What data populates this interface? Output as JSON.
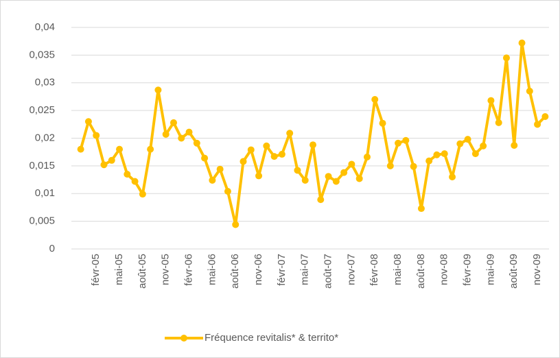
{
  "chart_data": {
    "type": "line",
    "categories": [
      null,
      null,
      "févr-05",
      null,
      null,
      "mai-05",
      null,
      null,
      "août-05",
      null,
      null,
      "nov-05",
      null,
      null,
      "févr-06",
      null,
      null,
      "mai-06",
      null,
      null,
      "août-06",
      null,
      null,
      "nov-06",
      null,
      null,
      "févr-07",
      null,
      null,
      "mai-07",
      null,
      null,
      "août-07",
      null,
      null,
      "nov-07",
      null,
      null,
      "févr-08",
      null,
      null,
      "mai-08",
      null,
      null,
      "août-08",
      null,
      null,
      "nov-08",
      null,
      null,
      "févr-09",
      null,
      null,
      "mai-09",
      null,
      null,
      "août-09",
      null,
      null,
      "nov-09",
      null
    ],
    "series": [
      {
        "name": "Fréquence revitalis* & territo*",
        "color": "#FFC000",
        "values": [
          0.018,
          0.023,
          0.0205,
          0.0152,
          0.016,
          0.018,
          0.0135,
          0.0122,
          0.0099,
          0.018,
          0.0287,
          0.0207,
          0.0228,
          0.02,
          0.0211,
          0.0191,
          0.0164,
          0.0124,
          0.0144,
          0.0104,
          0.0044,
          0.0158,
          0.0179,
          0.0132,
          0.0186,
          0.0167,
          0.0171,
          0.0209,
          0.0142,
          0.0124,
          0.0188,
          0.0089,
          0.0131,
          0.0122,
          0.0138,
          0.0153,
          0.0127,
          0.0166,
          0.027,
          0.0227,
          0.015,
          0.0191,
          0.0196,
          0.0149,
          0.0073,
          0.0159,
          0.017,
          0.0172,
          0.013,
          0.019,
          0.0198,
          0.0172,
          0.0186,
          0.0268,
          0.0228,
          0.0345,
          0.0187,
          0.0372,
          0.0285,
          0.0225,
          0.0239
        ]
      }
    ],
    "ylim": [
      0,
      0.04
    ],
    "yticks": [
      0,
      {
        "value": 0.005,
        "label": "0,005"
      },
      {
        "value": 0.01,
        "label": "0,01"
      },
      {
        "value": 0.015,
        "label": "0,015"
      },
      {
        "value": 0.02,
        "label": "0,02"
      },
      {
        "value": 0.025,
        "label": "0,025"
      },
      {
        "value": 0.03,
        "label": "0,03"
      },
      {
        "value": 0.035,
        "label": "0,035"
      },
      {
        "value": 0.04,
        "label": "0,04"
      }
    ],
    "grid": true,
    "legend": "bottom"
  }
}
